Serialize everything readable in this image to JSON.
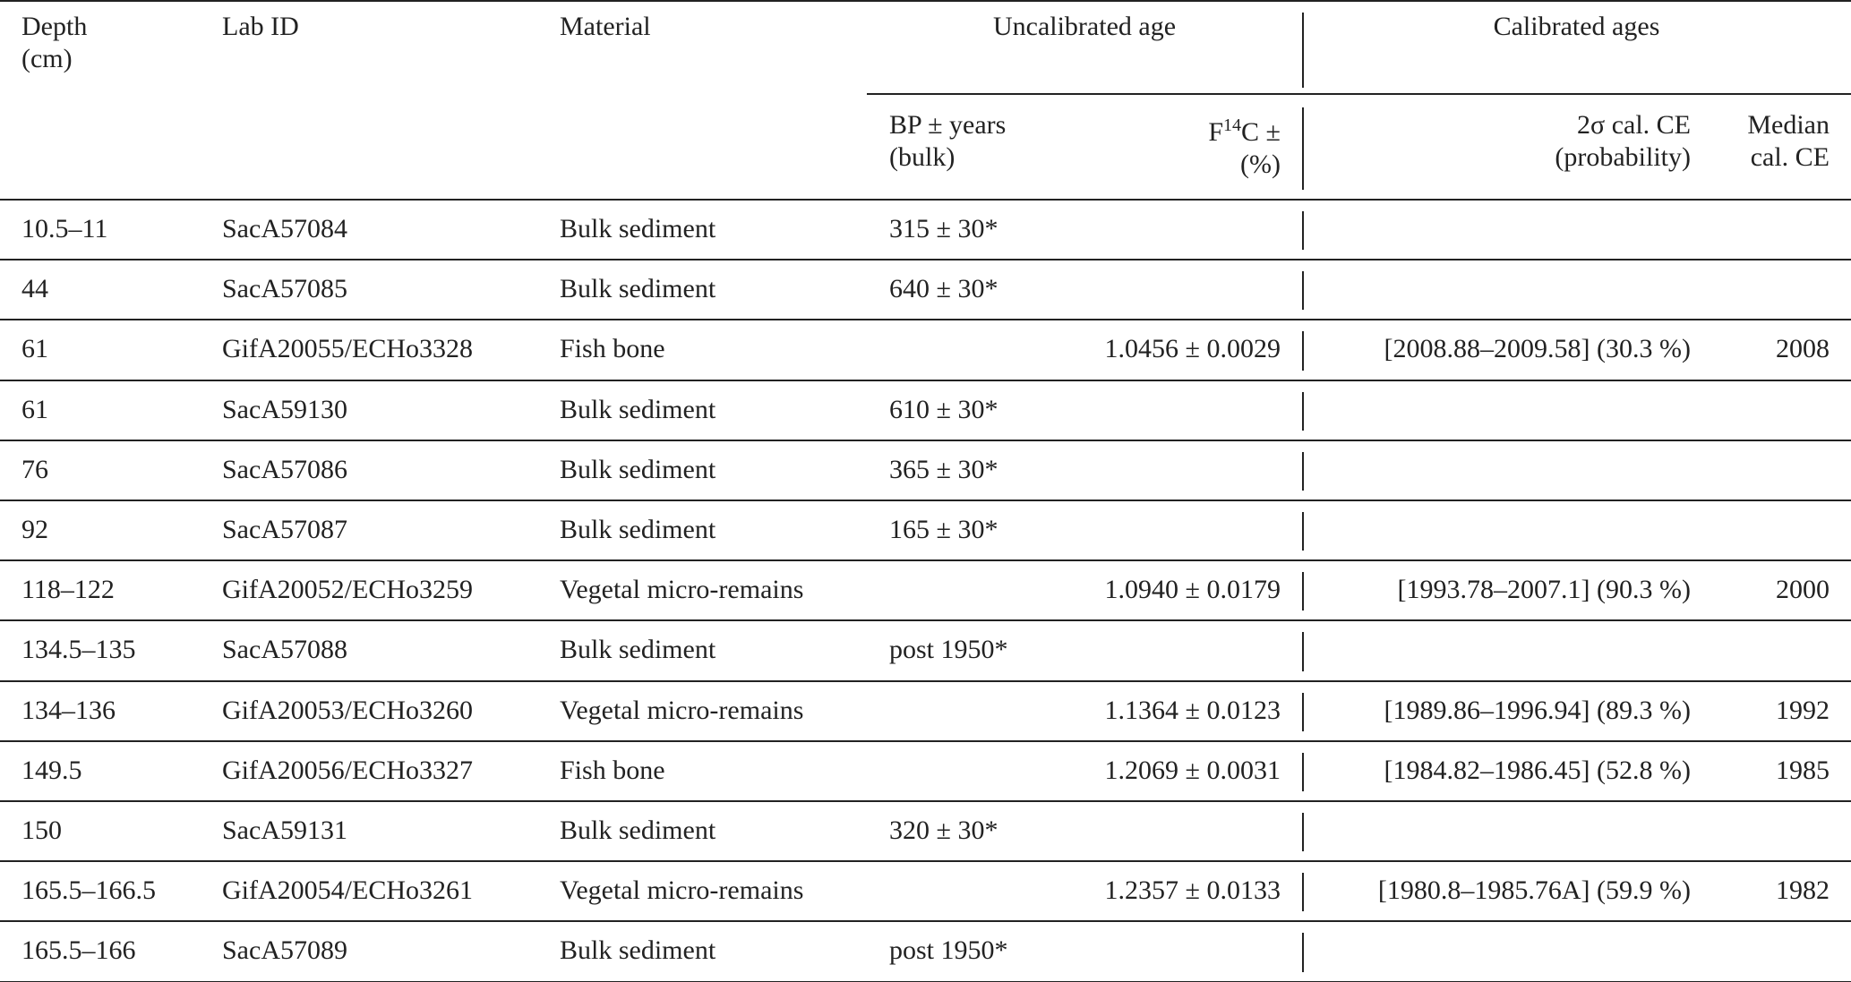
{
  "table": {
    "header": {
      "depth": "Depth (cm)",
      "lab_id": "Lab ID",
      "material": "Material",
      "uncalibrated": "Uncalibrated age",
      "calibrated": "Calibrated ages",
      "bp": "BP ± years (bulk)",
      "f14c": {
        "base": "F",
        "sup": "14",
        "rest": "C ± (%)"
      },
      "cal": "2σ cal. CE (probability)",
      "median": "Median cal. CE"
    },
    "rows": [
      [
        "10.5–11",
        "SacA57084",
        "Bulk sediment",
        "315 ± 30*",
        null,
        null,
        null
      ],
      [
        "44",
        "SacA57085",
        "Bulk sediment",
        "640 ± 30*",
        null,
        null,
        null
      ],
      [
        "61",
        "GifA20055/ECHo3328",
        "Fish bone",
        null,
        "1.0456 ± 0.0029",
        "[2008.88–2009.58] (30.3 %)",
        "2008"
      ],
      [
        "61",
        "SacA59130",
        "Bulk sediment",
        "610 ± 30*",
        null,
        null,
        null
      ],
      [
        "76",
        "SacA57086",
        "Bulk sediment",
        "365 ± 30*",
        null,
        null,
        null
      ],
      [
        "92",
        "SacA57087",
        "Bulk sediment",
        "165 ± 30*",
        null,
        null,
        null
      ],
      [
        "118–122",
        "GifA20052/ECHo3259",
        "Vegetal micro-remains",
        null,
        "1.0940 ± 0.0179",
        "[1993.78–2007.1] (90.3 %)",
        "2000"
      ],
      [
        "134.5–135",
        "SacA57088",
        "Bulk sediment",
        "post 1950*",
        null,
        null,
        null
      ],
      [
        "134–136",
        "GifA20053/ECHo3260",
        "Vegetal micro-remains",
        null,
        "1.1364 ± 0.0123",
        "[1989.86–1996.94] (89.3 %)",
        "1992"
      ],
      [
        "149.5",
        "GifA20056/ECHo3327",
        "Fish bone",
        null,
        "1.2069 ± 0.0031",
        "[1984.82–1986.45] (52.8 %)",
        "1985"
      ],
      [
        "150",
        "SacA59131",
        "Bulk sediment",
        "320 ± 30*",
        null,
        null,
        null
      ],
      [
        "165.5–166.5",
        "GifA20054/ECHo3261",
        "Vegetal micro-remains",
        null,
        "1.2357 ± 0.0133",
        "[1980.8–1985.76A] (59.9 %)",
        "1982"
      ],
      [
        "165.5–166",
        "SacA57089",
        "Bulk sediment",
        "post 1950*",
        null,
        null,
        null
      ]
    ]
  }
}
